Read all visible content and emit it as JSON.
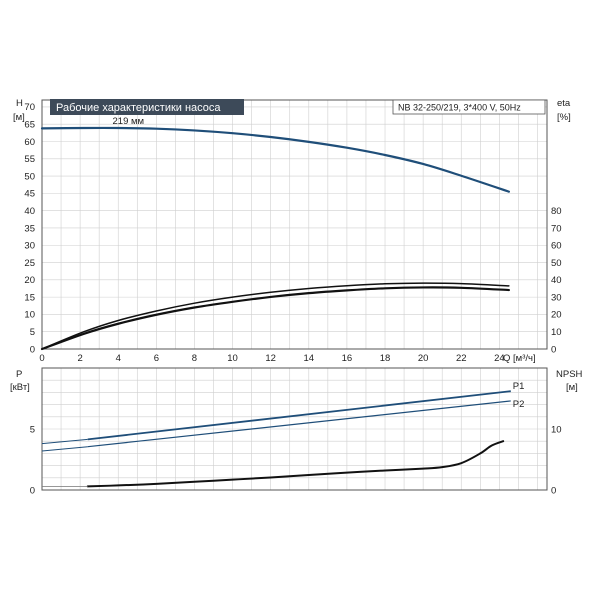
{
  "colors": {
    "pump_blue": "#1f4e79",
    "efficiency": "#111111",
    "grid": "#cfcfcf",
    "title_bg": "#3d4a59"
  },
  "chart_data": [
    {
      "id": "head",
      "type": "line",
      "title": "Рабочие характеристики насоса",
      "info": "NB 32-250/219, 3*400 V, 50Hz",
      "xlabel": "Q [м³/ч]",
      "x_ticks": [
        0,
        2,
        4,
        6,
        8,
        10,
        12,
        14,
        16,
        18,
        20,
        22,
        24
      ],
      "xlim": [
        0,
        26.5
      ],
      "y_left_label": "H",
      "y_left_unit": "[м]",
      "y_left_ticks": [
        0,
        5,
        10,
        15,
        20,
        25,
        30,
        35,
        40,
        45,
        50,
        55,
        60,
        65,
        70
      ],
      "ylim": [
        0,
        72
      ],
      "y_right_label": "eta",
      "y_right_unit": "[%]",
      "y_right_ticks": [
        0,
        10,
        20,
        30,
        40,
        50,
        60,
        70,
        80
      ],
      "grid": true,
      "annotations": [
        {
          "text": "219 мм",
          "x": 3.7,
          "y": 65
        }
      ],
      "series": [
        {
          "role": "head",
          "axis": "left",
          "x": [
            0,
            2.2,
            4,
            6,
            8,
            10,
            12,
            14,
            16,
            18,
            20,
            22,
            24.5
          ],
          "y": [
            63.8,
            63.9,
            63.9,
            63.7,
            63.2,
            62.4,
            61.3,
            59.9,
            58.2,
            56.1,
            53.5,
            50.1,
            45.5
          ]
        },
        {
          "role": "efficiency",
          "axis": "right",
          "x": [
            0,
            2.2,
            4,
            6,
            8,
            10,
            12,
            14,
            16,
            18,
            20,
            22,
            24.5
          ],
          "y": [
            0,
            10,
            16.5,
            22,
            26.5,
            30,
            32.8,
            35,
            36.6,
            37.7,
            38.1,
            37.8,
            36.5
          ]
        },
        {
          "role": "efficiency-lower",
          "axis": "right",
          "x": [
            0,
            2.2,
            4,
            6,
            8,
            10,
            12,
            14,
            16,
            18,
            20,
            22,
            24.5
          ],
          "y": [
            0,
            8.8,
            14.6,
            19.8,
            24,
            27.3,
            30.1,
            32.3,
            33.9,
            35.1,
            35.6,
            35.4,
            34.1
          ]
        }
      ]
    },
    {
      "id": "power",
      "type": "line",
      "x_ticks": [
        0,
        2,
        4,
        6,
        8,
        10,
        12,
        14,
        16,
        18,
        20,
        22,
        24
      ],
      "xlim": [
        0,
        26.5
      ],
      "y_left_label": "P",
      "y_left_unit": "[кВт]",
      "y_left_ticks": [
        0,
        5
      ],
      "ylim": [
        0,
        10
      ],
      "y_right_label": "NPSH",
      "y_right_unit": "[м]",
      "y_right_ticks": [
        0,
        10
      ],
      "y_right_lim": [
        0,
        20
      ],
      "grid": true,
      "series": [
        {
          "name": "P1",
          "role": "p1",
          "axis": "left",
          "x": [
            0,
            2.4,
            24.6
          ],
          "y": [
            3.8,
            4.15,
            8.1
          ]
        },
        {
          "name": "P2",
          "role": "p2",
          "axis": "left",
          "x": [
            0,
            2.4,
            24.6
          ],
          "y": [
            3.2,
            3.55,
            7.3
          ]
        },
        {
          "role": "npsh",
          "axis": "right",
          "x": [
            2.4,
            4,
            6,
            8,
            10,
            12,
            14,
            16,
            18,
            20,
            21,
            22,
            23,
            23.6,
            24.2
          ],
          "y": [
            0.6,
            0.75,
            1.0,
            1.35,
            1.7,
            2.05,
            2.45,
            2.85,
            3.2,
            3.5,
            3.75,
            4.4,
            6.0,
            7.3,
            8.0
          ]
        }
      ]
    }
  ]
}
